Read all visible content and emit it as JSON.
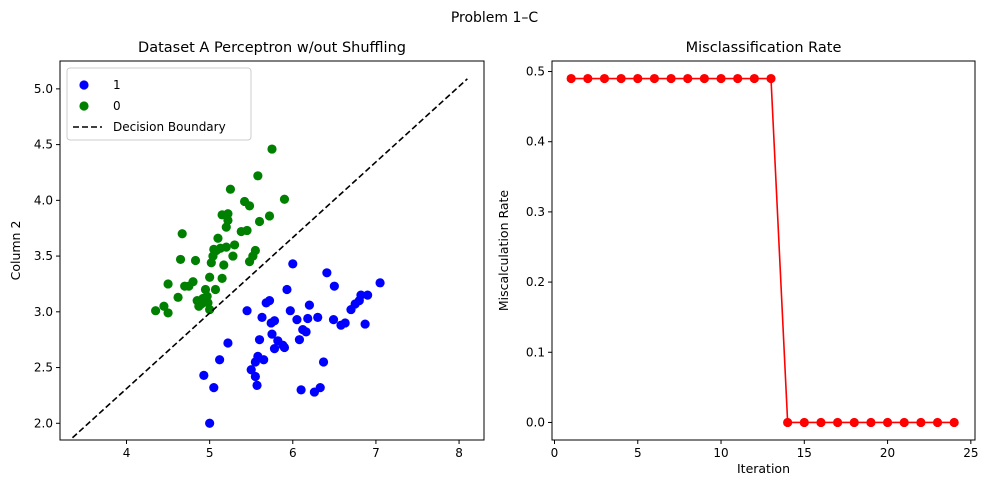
{
  "figure": {
    "suptitle": "Problem 1–C"
  },
  "chart_data": [
    {
      "type": "scatter",
      "title": "Dataset A Perceptron w/out Shuffling",
      "xlabel": "",
      "ylabel": "Column 2",
      "xlim": [
        3.2,
        8.3
      ],
      "ylim": [
        1.85,
        5.25
      ],
      "xticks": [
        4,
        5,
        6,
        7,
        8
      ],
      "yticks": [
        2.0,
        2.5,
        3.0,
        3.5,
        4.0,
        4.5,
        5.0
      ],
      "grid": false,
      "legend_position": "top-left",
      "series": [
        {
          "name": "1",
          "color": "#0000ff",
          "points": [
            [
              5.0,
              2.0
            ],
            [
              5.05,
              2.32
            ],
            [
              4.93,
              2.43
            ],
            [
              5.12,
              2.57
            ],
            [
              5.22,
              2.72
            ],
            [
              5.5,
              2.48
            ],
            [
              5.55,
              2.42
            ],
            [
              5.57,
              2.34
            ],
            [
              5.55,
              2.55
            ],
            [
              5.58,
              2.6
            ],
            [
              5.45,
              3.01
            ],
            [
              5.6,
              2.75
            ],
            [
              5.63,
              2.95
            ],
            [
              5.65,
              2.57
            ],
            [
              5.68,
              3.08
            ],
            [
              5.72,
              3.1
            ],
            [
              5.74,
              2.9
            ],
            [
              5.75,
              2.8
            ],
            [
              5.78,
              2.67
            ],
            [
              5.78,
              2.92
            ],
            [
              5.82,
              2.74
            ],
            [
              5.88,
              2.7
            ],
            [
              5.9,
              2.68
            ],
            [
              5.93,
              3.2
            ],
            [
              5.97,
              3.01
            ],
            [
              6.0,
              3.43
            ],
            [
              6.05,
              2.93
            ],
            [
              6.08,
              2.75
            ],
            [
              6.1,
              2.3
            ],
            [
              6.12,
              2.84
            ],
            [
              6.16,
              2.82
            ],
            [
              6.18,
              2.94
            ],
            [
              6.2,
              3.06
            ],
            [
              6.26,
              2.28
            ],
            [
              6.3,
              2.95
            ],
            [
              6.33,
              2.32
            ],
            [
              6.37,
              2.55
            ],
            [
              6.41,
              3.35
            ],
            [
              6.49,
              2.93
            ],
            [
              6.5,
              3.23
            ],
            [
              6.58,
              2.88
            ],
            [
              6.63,
              2.9
            ],
            [
              6.7,
              3.02
            ],
            [
              6.75,
              3.07
            ],
            [
              6.8,
              3.1
            ],
            [
              6.82,
              3.15
            ],
            [
              6.87,
              2.89
            ],
            [
              6.9,
              3.15
            ],
            [
              7.05,
              3.26
            ]
          ]
        },
        {
          "name": "0",
          "color": "#008000",
          "points": [
            [
              4.35,
              3.01
            ],
            [
              4.45,
              3.05
            ],
            [
              4.5,
              2.99
            ],
            [
              4.5,
              3.25
            ],
            [
              4.62,
              3.13
            ],
            [
              4.65,
              3.47
            ],
            [
              4.67,
              3.7
            ],
            [
              4.7,
              3.23
            ],
            [
              4.75,
              3.23
            ],
            [
              4.8,
              3.27
            ],
            [
              4.83,
              3.46
            ],
            [
              4.85,
              3.1
            ],
            [
              4.87,
              3.05
            ],
            [
              4.9,
              3.07
            ],
            [
              4.92,
              3.12
            ],
            [
              4.95,
              3.2
            ],
            [
              4.97,
              3.14
            ],
            [
              4.98,
              3.08
            ],
            [
              5.0,
              3.02
            ],
            [
              5.0,
              3.31
            ],
            [
              5.02,
              3.44
            ],
            [
              5.04,
              3.5
            ],
            [
              5.05,
              3.56
            ],
            [
              5.07,
              3.2
            ],
            [
              5.08,
              3.55
            ],
            [
              5.1,
              3.66
            ],
            [
              5.13,
              3.57
            ],
            [
              5.15,
              3.3
            ],
            [
              5.15,
              3.87
            ],
            [
              5.17,
              3.42
            ],
            [
              5.2,
              3.58
            ],
            [
              5.2,
              3.76
            ],
            [
              5.22,
              3.82
            ],
            [
              5.22,
              3.88
            ],
            [
              5.25,
              4.1
            ],
            [
              5.28,
              3.5
            ],
            [
              5.3,
              3.6
            ],
            [
              5.38,
              3.72
            ],
            [
              5.42,
              3.99
            ],
            [
              5.45,
              3.73
            ],
            [
              5.48,
              3.45
            ],
            [
              5.48,
              3.95
            ],
            [
              5.52,
              3.5
            ],
            [
              5.55,
              3.55
            ],
            [
              5.58,
              4.22
            ],
            [
              5.6,
              3.81
            ],
            [
              5.72,
              3.86
            ],
            [
              5.75,
              4.46
            ],
            [
              5.9,
              4.01
            ]
          ]
        },
        {
          "name": "Decision Boundary",
          "kind": "line",
          "style": "dashed",
          "color": "#000000",
          "points": [
            [
              3.35,
              1.87
            ],
            [
              8.1,
              5.09
            ]
          ]
        }
      ]
    },
    {
      "type": "line",
      "title": "Misclassification Rate",
      "xlabel": "Iteration",
      "ylabel": "Miscalculation Rate",
      "xlim": [
        -0.15,
        25.25
      ],
      "ylim": [
        -0.025,
        0.515
      ],
      "xticks": [
        0,
        5,
        10,
        15,
        20,
        25
      ],
      "yticks": [
        0.0,
        0.1,
        0.2,
        0.3,
        0.4,
        0.5
      ],
      "grid": false,
      "series": [
        {
          "color": "#ff0000",
          "x": [
            1,
            2,
            3,
            4,
            5,
            6,
            7,
            8,
            9,
            10,
            11,
            12,
            13,
            14,
            15,
            16,
            17,
            18,
            19,
            20,
            21,
            22,
            23,
            24
          ],
          "y": [
            0.49,
            0.49,
            0.49,
            0.49,
            0.49,
            0.49,
            0.49,
            0.49,
            0.49,
            0.49,
            0.49,
            0.49,
            0.49,
            0.0,
            0.0,
            0.0,
            0.0,
            0.0,
            0.0,
            0.0,
            0.0,
            0.0,
            0.0,
            0.0
          ]
        }
      ]
    }
  ]
}
